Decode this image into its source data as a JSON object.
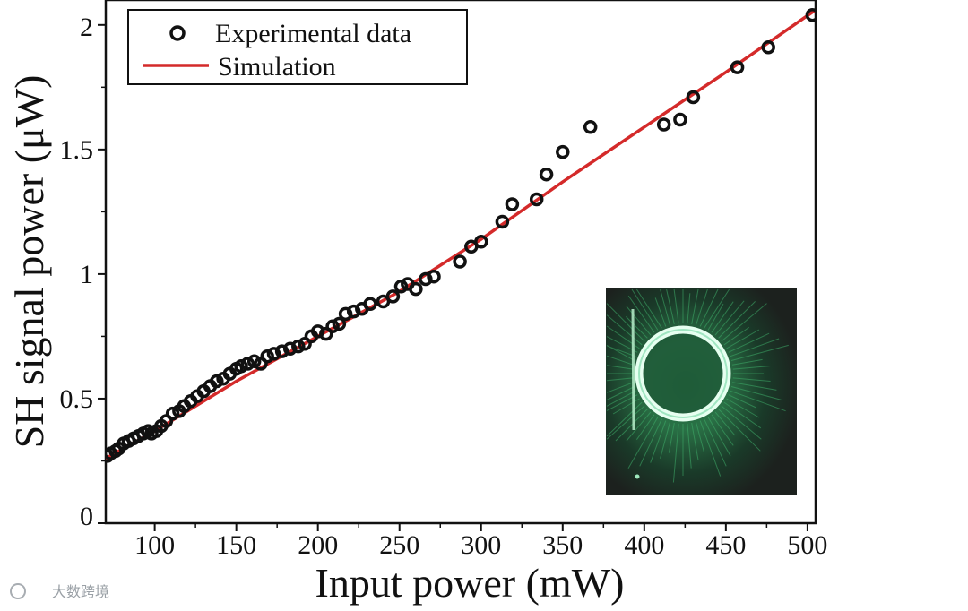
{
  "chart_data": {
    "type": "scatter",
    "xlabel": "Input power  (mW)",
    "ylabel": "SH signal power (μW)",
    "xlim": [
      70,
      505
    ],
    "ylim": [
      0,
      2.1
    ],
    "x_ticks": [
      100,
      150,
      200,
      250,
      300,
      350,
      400,
      450,
      500
    ],
    "x_minor_ticks": [
      125,
      175,
      225,
      275,
      325,
      375,
      425,
      475
    ],
    "y_ticks": [
      0,
      0.5,
      1,
      1.5,
      2
    ],
    "y_tick_labels": [
      "0",
      "0.5",
      "1",
      "1.5",
      "2"
    ],
    "y_minor_ticks": [
      0.25,
      0.75,
      1.25,
      1.75
    ],
    "legend_position": "top-left",
    "series": [
      {
        "name": "Experimental data",
        "style": "open-circle",
        "color": "#111111",
        "x": [
          71,
          73,
          76,
          78,
          81,
          84,
          87,
          90,
          93,
          96,
          98,
          101,
          104,
          107,
          111,
          115,
          118,
          122,
          126,
          130,
          134,
          138,
          142,
          146,
          150,
          153,
          157,
          161,
          165,
          169,
          173,
          178,
          183,
          188,
          192,
          196,
          200,
          205,
          209,
          213,
          217,
          222,
          227,
          232,
          240,
          246,
          251,
          255,
          260,
          266,
          271,
          287,
          294,
          300,
          313,
          319,
          334,
          340,
          350,
          367,
          412,
          422,
          430,
          457,
          476,
          503
        ],
        "y": [
          0.27,
          0.28,
          0.29,
          0.3,
          0.32,
          0.33,
          0.34,
          0.35,
          0.36,
          0.37,
          0.36,
          0.37,
          0.39,
          0.41,
          0.44,
          0.45,
          0.47,
          0.49,
          0.51,
          0.53,
          0.55,
          0.57,
          0.58,
          0.6,
          0.62,
          0.63,
          0.64,
          0.65,
          0.64,
          0.67,
          0.68,
          0.69,
          0.7,
          0.71,
          0.72,
          0.75,
          0.77,
          0.76,
          0.79,
          0.8,
          0.84,
          0.85,
          0.86,
          0.88,
          0.89,
          0.91,
          0.95,
          0.96,
          0.94,
          0.98,
          0.99,
          1.05,
          1.11,
          1.13,
          1.21,
          1.28,
          1.3,
          1.4,
          1.49,
          1.59,
          1.6,
          1.62,
          1.71,
          1.83,
          1.91,
          2.04
        ]
      },
      {
        "name": "Simulation",
        "style": "line",
        "color": "#d42a2a",
        "x": [
          70,
          100,
          150,
          200,
          250,
          300,
          350,
          400,
          450,
          505
        ],
        "y": [
          0.26,
          0.37,
          0.57,
          0.75,
          0.93,
          1.14,
          1.37,
          1.59,
          1.81,
          2.06
        ]
      }
    ],
    "inset": {
      "type": "image",
      "content": "photograph of green ring-shaped beam spot"
    }
  },
  "watermark": {
    "text": "大数跨境"
  }
}
